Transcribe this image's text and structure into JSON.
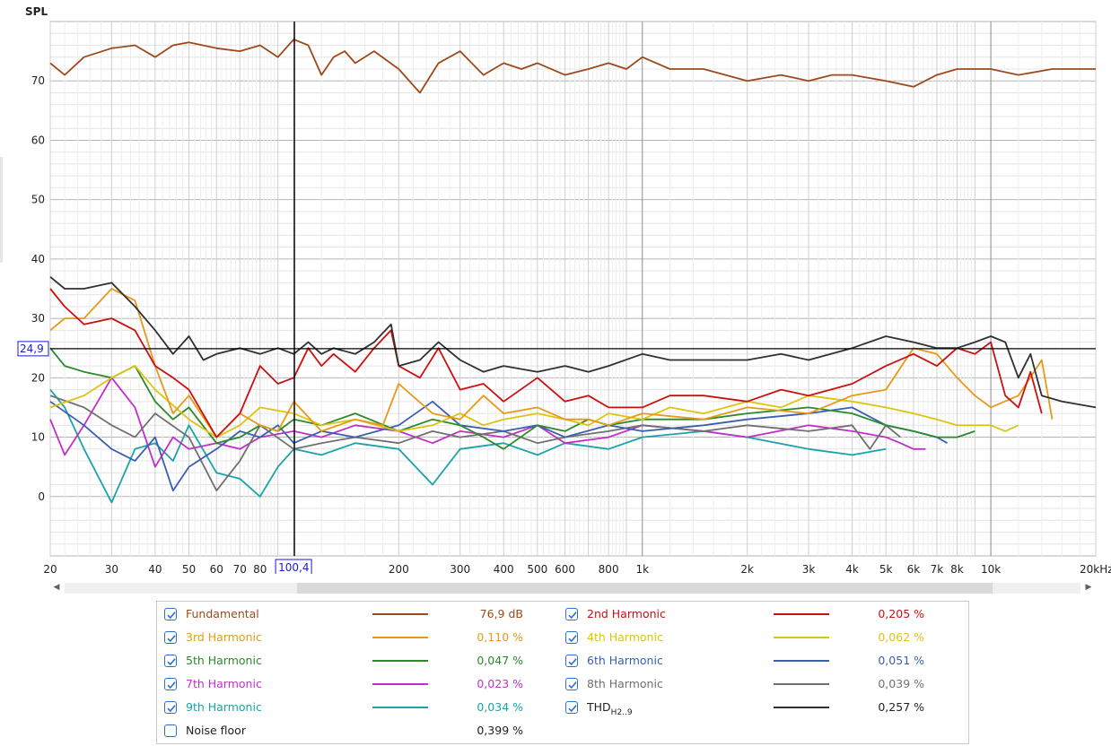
{
  "axis": {
    "y_title": "SPL",
    "y_ticks": [
      "70",
      "60",
      "50",
      "40",
      "30",
      "20",
      "10",
      "0"
    ],
    "x_ticks": [
      {
        "label": "20",
        "f": 20
      },
      {
        "label": "30",
        "f": 30
      },
      {
        "label": "40",
        "f": 40
      },
      {
        "label": "50",
        "f": 50
      },
      {
        "label": "60",
        "f": 60
      },
      {
        "label": "70",
        "f": 70
      },
      {
        "label": "80",
        "f": 80
      },
      {
        "label": "200",
        "f": 200
      },
      {
        "label": "300",
        "f": 300
      },
      {
        "label": "400",
        "f": 400
      },
      {
        "label": "500",
        "f": 500
      },
      {
        "label": "600",
        "f": 600
      },
      {
        "label": "800",
        "f": 800
      },
      {
        "label": "1k",
        "f": 1000
      },
      {
        "label": "2k",
        "f": 2000
      },
      {
        "label": "3k",
        "f": 3000
      },
      {
        "label": "4k",
        "f": 4000
      },
      {
        "label": "5k",
        "f": 5000
      },
      {
        "label": "6k",
        "f": 6000
      },
      {
        "label": "7k",
        "f": 7000
      },
      {
        "label": "8k",
        "f": 8000
      },
      {
        "label": "10k",
        "f": 10000
      },
      {
        "label": "20kHz",
        "f": 20000
      }
    ],
    "cursor_x_label": "100,4",
    "cursor_y_label": "24,9"
  },
  "chart_data": {
    "type": "line",
    "xscale": "log",
    "xlim": [
      20,
      20000
    ],
    "ylim": [
      -10,
      80
    ],
    "xlabel": "",
    "ylabel": "SPL",
    "grid": true,
    "cursor": {
      "x": 100.4,
      "y": 24.9
    },
    "series": [
      {
        "name": "Fundamental",
        "color": "#9c4a1a",
        "x": [
          20,
          22,
          25,
          30,
          35,
          40,
          45,
          50,
          60,
          70,
          80,
          90,
          100,
          110,
          120,
          130,
          140,
          150,
          170,
          200,
          230,
          260,
          300,
          350,
          400,
          450,
          500,
          600,
          700,
          800,
          900,
          1000,
          1200,
          1500,
          2000,
          2500,
          3000,
          3500,
          4000,
          5000,
          6000,
          7000,
          8000,
          10000,
          12000,
          15000,
          20000
        ],
        "y": [
          73,
          71,
          74,
          75.5,
          76,
          74,
          76,
          76.5,
          75.5,
          75,
          76,
          74,
          77,
          76,
          71,
          74,
          75,
          73,
          75,
          72,
          68,
          73,
          75,
          71,
          73,
          72,
          73,
          71,
          72,
          73,
          72,
          74,
          72,
          72,
          70,
          71,
          70,
          71,
          71,
          70,
          69,
          71,
          72,
          72,
          71,
          72,
          72
        ]
      },
      {
        "name": "2nd Harmonic",
        "color": "#cc1010",
        "x": [
          20,
          22,
          25,
          30,
          35,
          40,
          45,
          50,
          60,
          70,
          80,
          90,
          100,
          110,
          120,
          130,
          150,
          170,
          190,
          200,
          230,
          260,
          300,
          350,
          400,
          500,
          600,
          700,
          800,
          1000,
          1200,
          1500,
          2000,
          2500,
          3000,
          4000,
          5000,
          6000,
          7000,
          8000,
          9000,
          10000,
          11000,
          12000,
          13000,
          14000
        ],
        "y": [
          35,
          32,
          29,
          30,
          28,
          22,
          20,
          18,
          10,
          14,
          22,
          19,
          20,
          25,
          22,
          24,
          21,
          25,
          28,
          22,
          20,
          25,
          18,
          19,
          16,
          20,
          16,
          17,
          15,
          15,
          17,
          17,
          16,
          18,
          17,
          19,
          22,
          24,
          22,
          25,
          24,
          26,
          17,
          15,
          21,
          14
        ]
      },
      {
        "name": "3rd Harmonic",
        "color": "#e69a18",
        "x": [
          20,
          22,
          25,
          30,
          35,
          40,
          45,
          50,
          60,
          70,
          80,
          90,
          100,
          120,
          150,
          180,
          200,
          250,
          300,
          350,
          400,
          500,
          600,
          700,
          800,
          1000,
          1500,
          2000,
          3000,
          4000,
          5000,
          6000,
          7000,
          8000,
          9000,
          10000,
          12000,
          14000,
          15000
        ],
        "y": [
          28,
          30,
          30,
          35,
          33,
          22,
          14,
          17,
          10,
          14,
          12,
          11,
          16,
          11,
          13,
          12,
          19,
          14,
          13,
          17,
          14,
          15,
          13,
          13,
          12,
          14,
          13,
          15,
          14,
          17,
          18,
          25,
          24,
          20,
          17,
          15,
          17,
          23,
          13
        ]
      },
      {
        "name": "4th Harmonic",
        "color": "#dcc410",
        "x": [
          20,
          25,
          30,
          35,
          40,
          50,
          60,
          70,
          80,
          100,
          120,
          150,
          200,
          250,
          300,
          350,
          400,
          500,
          600,
          700,
          800,
          1000,
          1200,
          1500,
          2000,
          2500,
          3000,
          4000,
          5000,
          6000,
          7000,
          8000,
          9000,
          10000,
          11000,
          12000
        ],
        "y": [
          15,
          17,
          20,
          22,
          18,
          13,
          10,
          12,
          15,
          14,
          12,
          13,
          11,
          12,
          14,
          12,
          13,
          14,
          13,
          12,
          14,
          13,
          15,
          14,
          16,
          15,
          17,
          16,
          15,
          14,
          13,
          12,
          12,
          12,
          11,
          12
        ]
      },
      {
        "name": "5th Harmonic",
        "color": "#2a8a2a",
        "x": [
          20,
          22,
          25,
          30,
          35,
          40,
          45,
          50,
          60,
          70,
          80,
          90,
          100,
          120,
          150,
          200,
          250,
          300,
          350,
          400,
          500,
          600,
          700,
          800,
          1000,
          1500,
          2000,
          3000,
          4000,
          5000,
          6000,
          7000,
          8000,
          9000
        ],
        "y": [
          25,
          22,
          21,
          20,
          22,
          16,
          13,
          15,
          9,
          10,
          12,
          11,
          13,
          12,
          14,
          11,
          13,
          12,
          10,
          8,
          12,
          11,
          13,
          12,
          13,
          13,
          14,
          15,
          14,
          12,
          11,
          10,
          10,
          11
        ]
      },
      {
        "name": "6th Harmonic",
        "color": "#3a5fb0",
        "x": [
          20,
          25,
          30,
          35,
          40,
          45,
          50,
          60,
          70,
          80,
          90,
          100,
          120,
          150,
          200,
          250,
          300,
          400,
          500,
          600,
          800,
          1000,
          1500,
          2000,
          3000,
          4000,
          5000,
          6000,
          7000,
          7500
        ],
        "y": [
          16,
          12,
          8,
          6,
          10,
          1,
          5,
          8,
          11,
          10,
          12,
          9,
          11,
          10,
          12,
          16,
          12,
          11,
          12,
          10,
          12,
          11,
          12,
          13,
          14,
          15,
          12,
          11,
          10,
          9
        ]
      },
      {
        "name": "7th Harmonic",
        "color": "#c030c8",
        "x": [
          20,
          22,
          25,
          30,
          35,
          40,
          45,
          50,
          60,
          70,
          80,
          100,
          120,
          150,
          200,
          250,
          300,
          400,
          500,
          600,
          800,
          1000,
          1500,
          2000,
          3000,
          4000,
          5000,
          5500,
          6000,
          6500
        ],
        "y": [
          13,
          7,
          12,
          20,
          15,
          5,
          10,
          8,
          9,
          8,
          10,
          11,
          10,
          12,
          11,
          9,
          11,
          10,
          12,
          9,
          10,
          12,
          11,
          10,
          12,
          11,
          10,
          9,
          8,
          8
        ]
      },
      {
        "name": "8th Harmonic",
        "color": "#707070",
        "x": [
          20,
          25,
          30,
          35,
          40,
          50,
          60,
          70,
          80,
          100,
          120,
          150,
          200,
          250,
          300,
          400,
          500,
          600,
          800,
          1000,
          1500,
          2000,
          3000,
          4000,
          4500,
          5000,
          5500
        ],
        "y": [
          17,
          15,
          12,
          10,
          14,
          10,
          1,
          6,
          12,
          8,
          9,
          10,
          9,
          11,
          10,
          11,
          9,
          10,
          11,
          12,
          11,
          12,
          11,
          12,
          8,
          12,
          10
        ]
      },
      {
        "name": "9th Harmonic",
        "color": "#1aa3a8",
        "x": [
          20,
          22,
          25,
          30,
          35,
          40,
          45,
          50,
          60,
          70,
          80,
          90,
          100,
          120,
          150,
          200,
          250,
          300,
          400,
          500,
          600,
          800,
          1000,
          1500,
          2000,
          3000,
          4000,
          5000
        ],
        "y": [
          18,
          15,
          8,
          -1,
          8,
          9,
          6,
          12,
          4,
          3,
          0,
          5,
          8,
          7,
          9,
          8,
          2,
          8,
          9,
          7,
          9,
          8,
          10,
          11,
          10,
          8,
          7,
          8
        ]
      },
      {
        "name": "THD",
        "color": "#303030",
        "x": [
          20,
          22,
          25,
          30,
          35,
          40,
          45,
          50,
          55,
          60,
          70,
          80,
          90,
          100,
          110,
          120,
          130,
          150,
          170,
          190,
          200,
          230,
          260,
          300,
          350,
          400,
          500,
          600,
          700,
          800,
          1000,
          1200,
          1500,
          2000,
          2500,
          3000,
          4000,
          5000,
          6000,
          7000,
          8000,
          9000,
          10000,
          11000,
          12000,
          13000,
          14000,
          16000,
          20000
        ],
        "y": [
          37,
          35,
          35,
          36,
          32,
          28,
          24,
          27,
          23,
          24,
          25,
          24,
          25,
          24,
          26,
          24,
          25,
          24,
          26,
          29,
          22,
          23,
          26,
          23,
          21,
          22,
          21,
          22,
          21,
          22,
          24,
          23,
          23,
          23,
          24,
          23,
          25,
          27,
          26,
          25,
          25,
          26,
          27,
          26,
          20,
          24,
          17,
          16,
          15
        ]
      }
    ]
  },
  "legend": {
    "items": [
      {
        "name": "Fundamental",
        "value": "76,9 dB",
        "color": "#9c4a1a",
        "checked": true
      },
      {
        "name": "2nd Harmonic",
        "value": "0,205 %",
        "color": "#cc1010",
        "checked": true
      },
      {
        "name": "3rd Harmonic",
        "value": "0,110 %",
        "color": "#e69a18",
        "checked": true
      },
      {
        "name": "4th Harmonic",
        "value": "0,062 %",
        "color": "#dcc410",
        "checked": true
      },
      {
        "name": "5th Harmonic",
        "value": "0,047 %",
        "color": "#2a8a2a",
        "checked": true
      },
      {
        "name": "6th Harmonic",
        "value": "0,051 %",
        "color": "#3a5fb0",
        "checked": true
      },
      {
        "name": "7th Harmonic",
        "value": "0,023 %",
        "color": "#c030c8",
        "checked": true
      },
      {
        "name": "8th Harmonic",
        "value": "0,039 %",
        "color": "#707070",
        "checked": true
      },
      {
        "name": "9th Harmonic",
        "value": "0,034 %",
        "color": "#1aa3a8",
        "checked": true
      },
      {
        "name": "THD",
        "sub": "H2..9",
        "value": "0,257 %",
        "color": "#303030",
        "checked": true
      },
      {
        "name": "Noise floor",
        "value": "0,399 %",
        "color": "#7a3a10",
        "checked": false
      }
    ]
  },
  "scrollbar": {
    "left_icon": "chevron-left-icon",
    "right_icon": "chevron-right-icon"
  }
}
